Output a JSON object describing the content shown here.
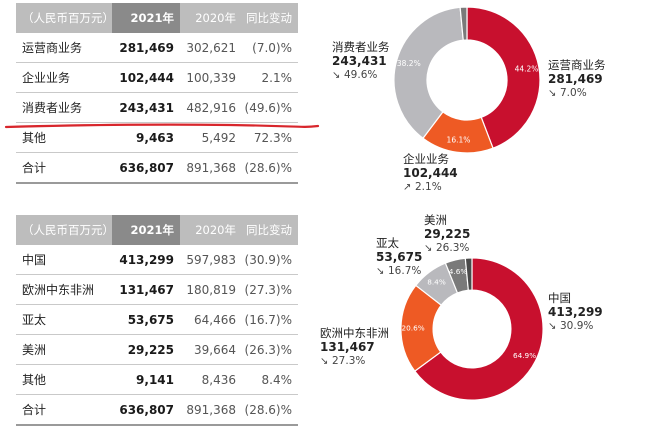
{
  "table1": {
    "header": [
      "（人民币百万元）",
      "2021年",
      "2020年",
      "同比变动"
    ],
    "rows": [
      {
        "name": "运营商业务",
        "y2021": "281,469",
        "y2020": "302,621",
        "chg": "(7.0)%"
      },
      {
        "name": "企业业务",
        "y2021": "102,444",
        "y2020": "100,339",
        "chg": "2.1%"
      },
      {
        "name": "消费者业务",
        "y2021": "243,431",
        "y2020": "482,916",
        "chg": "(49.6)%"
      },
      {
        "name": "其他",
        "y2021": "9,463",
        "y2020": "5,492",
        "chg": "72.3%"
      },
      {
        "name": "合计",
        "y2021": "636,807",
        "y2020": "891,368",
        "chg": "(28.6)%"
      }
    ]
  },
  "table2": {
    "header": [
      "（人民币百万元）",
      "2021年",
      "2020年",
      "同比变动"
    ],
    "rows": [
      {
        "name": "中国",
        "y2021": "413,299",
        "y2020": "597,983",
        "chg": "(30.9)%"
      },
      {
        "name": "欧洲中东非洲",
        "y2021": "131,467",
        "y2020": "180,819",
        "chg": "(27.3)%"
      },
      {
        "name": "亚太",
        "y2021": "53,675",
        "y2020": "64,466",
        "chg": "(16.7)%"
      },
      {
        "name": "美洲",
        "y2021": "29,225",
        "y2020": "39,664",
        "chg": "(26.3)%"
      },
      {
        "name": "其他",
        "y2021": "9,141",
        "y2020": "8,436",
        "chg": "8.4%"
      },
      {
        "name": "合计",
        "y2021": "636,807",
        "y2020": "891,368",
        "chg": "(28.6)%"
      }
    ]
  },
  "callouts1": [
    {
      "name": "运营商业务",
      "value": "281,469",
      "arrow": "down",
      "change": "7.0%"
    },
    {
      "name": "企业业务",
      "value": "102,444",
      "arrow": "up",
      "change": "2.1%"
    },
    {
      "name": "消费者业务",
      "value": "243,431",
      "arrow": "down",
      "change": "49.6%"
    }
  ],
  "callouts2": [
    {
      "name": "中国",
      "value": "413,299",
      "arrow": "down",
      "change": "30.9%"
    },
    {
      "name": "欧洲中东非洲",
      "value": "131,467",
      "arrow": "down",
      "change": "27.3%"
    },
    {
      "name": "亚太",
      "value": "53,675",
      "arrow": "down",
      "change": "16.7%"
    },
    {
      "name": "美洲",
      "value": "29,225",
      "arrow": "down",
      "change": "26.3%"
    }
  ],
  "chart_data": [
    {
      "type": "pie",
      "categories": [
        "运营商业务",
        "企业业务",
        "消费者业务",
        "其他"
      ],
      "values": [
        44.2,
        16.1,
        38.2,
        1.5
      ],
      "labels": [
        "44.2%",
        "16.1%",
        "38.2%",
        ""
      ],
      "colors": [
        "#c8102e",
        "#ee5a24",
        "#b9b9bd",
        "#7a7a7a"
      ]
    },
    {
      "type": "pie",
      "categories": [
        "中国",
        "欧洲中东非洲",
        "亚太",
        "美洲",
        "其他"
      ],
      "values": [
        64.9,
        20.6,
        8.4,
        4.6,
        1.5
      ],
      "labels": [
        "64.9%",
        "20.6%",
        "8.4%",
        "4.6%",
        ""
      ],
      "colors": [
        "#c8102e",
        "#ee5a24",
        "#b9b9bd",
        "#7a7a7a",
        "#4a4a4a"
      ]
    }
  ]
}
